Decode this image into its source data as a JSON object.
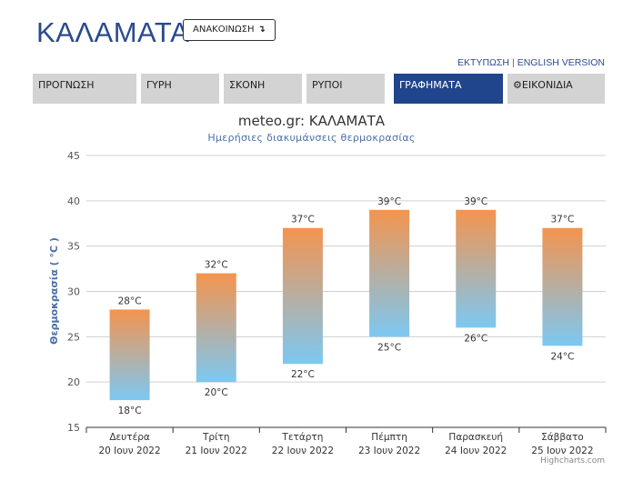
{
  "header": {
    "city": "ΚΑΛΑΜΑΤΑ",
    "announce_label": "ΑΝΑΚΟΙΝΩΣΗ",
    "announce_arrow": "↴",
    "print_link": "ΕΚΤΥΠΩΣΗ",
    "separator": "|",
    "english_link": "ENGLISH VERSION"
  },
  "tabs": [
    {
      "label": "ΠΡΟΓΝΩΣΗ",
      "active": false
    },
    {
      "label": "ΓΥΡΗ",
      "active": false
    },
    {
      "label": "ΣΚΟΝΗ",
      "active": false
    },
    {
      "label": "ΡΥΠΟΙ",
      "active": false
    },
    {
      "label": "ΓΡΑΦΗΜΑΤΑ",
      "active": true
    },
    {
      "label": "ΕΙΚΟΝΙΔΙΑ",
      "active": false,
      "icon": "gear-icon"
    }
  ],
  "chart_data": {
    "type": "columnrange",
    "title": "meteo.gr: ΚΑΛΑΜΑΤΑ",
    "subtitle": "Ημερήσιες διακυμάνσεις θερμοκρασίας",
    "ylabel": "Θερμοκρασία ( °C )",
    "ylim": [
      15,
      45
    ],
    "yticks": [
      15,
      20,
      25,
      30,
      35,
      40,
      45
    ],
    "unit": "°C",
    "grid": true,
    "legend": "none",
    "categories": [
      {
        "day": "Δευτέρα",
        "date": "20 Ιουν 2022"
      },
      {
        "day": "Τρίτη",
        "date": "21 Ιουν 2022"
      },
      {
        "day": "Τετάρτη",
        "date": "22 Ιουν 2022"
      },
      {
        "day": "Πέμπτη",
        "date": "23 Ιουν 2022"
      },
      {
        "day": "Παρασκευή",
        "date": "24 Ιουν 2022"
      },
      {
        "day": "Σάββατο",
        "date": "25 Ιουν 2022"
      }
    ],
    "low": [
      18,
      20,
      22,
      25,
      26,
      24
    ],
    "high": [
      28,
      32,
      37,
      39,
      39,
      37
    ],
    "colors": {
      "high": "#f4944e",
      "low": "#7cc8f2"
    }
  },
  "credits": "Highcharts.com"
}
